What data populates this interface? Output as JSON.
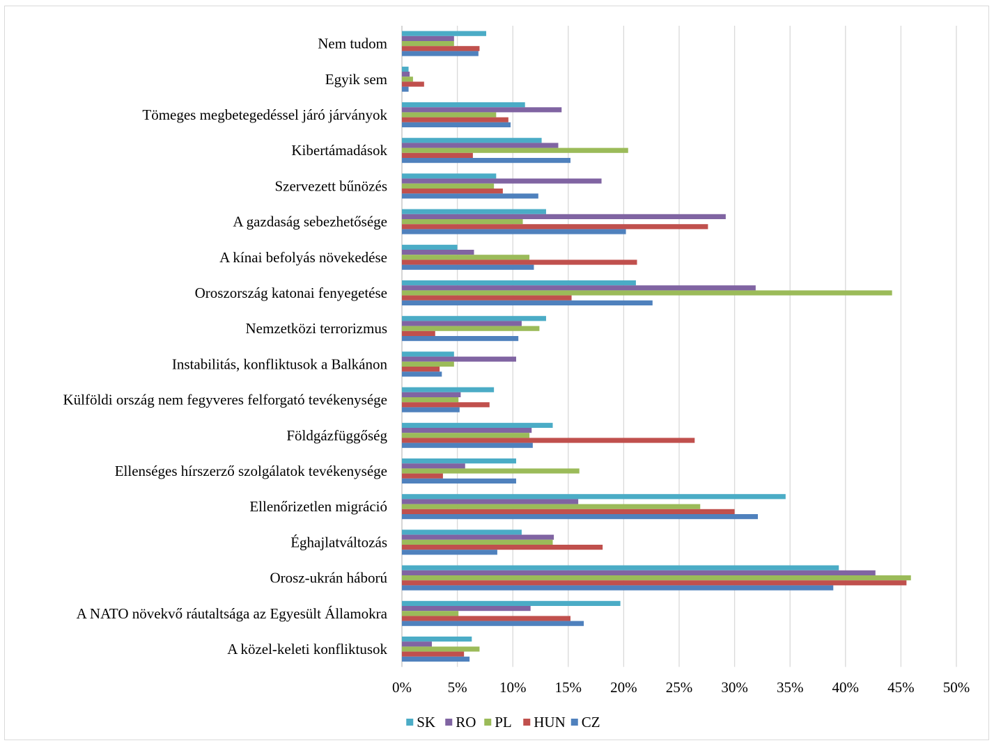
{
  "chart_data": {
    "type": "bar",
    "orientation": "horizontal",
    "categories": [
      "Nem tudom",
      "Egyik sem",
      "Tömeges megbetegedéssel járó járványok",
      "Kibertámadások",
      "Szervezett bűnözés",
      "A gazdaság sebezhetősége",
      "A kínai befolyás növekedése",
      "Oroszország katonai fenyegetése",
      "Nemzetközi terrorizmus",
      "Instabilitás, konfliktusok a Balkánon",
      "Külföldi ország nem fegyveres felforgató tevékenysége",
      "Földgázfüggőség",
      "Ellenséges hírszerző szolgálatok tevékenysége",
      "Ellenőrizetlen migráció",
      "Éghajlatváltozás",
      "Orosz-ukrán háború",
      "A NATO növekvő ráutaltsága az Egyesült Államokra",
      "A közel-keleti konfliktusok"
    ],
    "series": [
      {
        "name": "SK",
        "color": "#4bacc6",
        "values": [
          7.6,
          0.6,
          11.1,
          12.6,
          8.5,
          13.0,
          5.0,
          21.1,
          13.0,
          4.7,
          8.3,
          13.6,
          10.3,
          34.6,
          10.8,
          39.4,
          19.7,
          6.3
        ]
      },
      {
        "name": "RO",
        "color": "#8064a2",
        "values": [
          4.7,
          0.7,
          14.4,
          14.1,
          18.0,
          29.2,
          6.5,
          31.9,
          10.8,
          10.3,
          5.3,
          11.7,
          5.7,
          15.9,
          13.7,
          42.7,
          11.6,
          2.7
        ]
      },
      {
        "name": "PL",
        "color": "#9bbb59",
        "values": [
          4.7,
          1.0,
          8.5,
          20.4,
          8.3,
          10.9,
          11.5,
          44.2,
          12.4,
          4.7,
          5.1,
          11.5,
          16.0,
          26.9,
          13.6,
          45.9,
          5.1,
          7.0
        ]
      },
      {
        "name": "HUN",
        "color": "#c0504d",
        "values": [
          7.0,
          2.0,
          9.6,
          6.4,
          9.1,
          27.6,
          21.2,
          15.3,
          3.0,
          3.4,
          7.9,
          26.4,
          3.7,
          30.0,
          18.1,
          45.5,
          15.2,
          5.6
        ]
      },
      {
        "name": "CZ",
        "color": "#4f81bd",
        "values": [
          6.9,
          0.6,
          9.8,
          15.2,
          12.3,
          20.2,
          11.9,
          22.6,
          10.5,
          3.6,
          5.2,
          11.8,
          10.3,
          32.1,
          8.6,
          38.9,
          16.4,
          6.1
        ]
      }
    ],
    "xlim": [
      0,
      50
    ],
    "x_ticks": [
      "0%",
      "5%",
      "10%",
      "15%",
      "20%",
      "25%",
      "30%",
      "35%",
      "40%",
      "45%",
      "50%"
    ],
    "x_tick_values": [
      0,
      5,
      10,
      15,
      20,
      25,
      30,
      35,
      40,
      45,
      50
    ],
    "grid": "vertical",
    "legend_position": "bottom",
    "gridline_color": "#d9d9d9",
    "axis_color": "#bfbfbf"
  }
}
